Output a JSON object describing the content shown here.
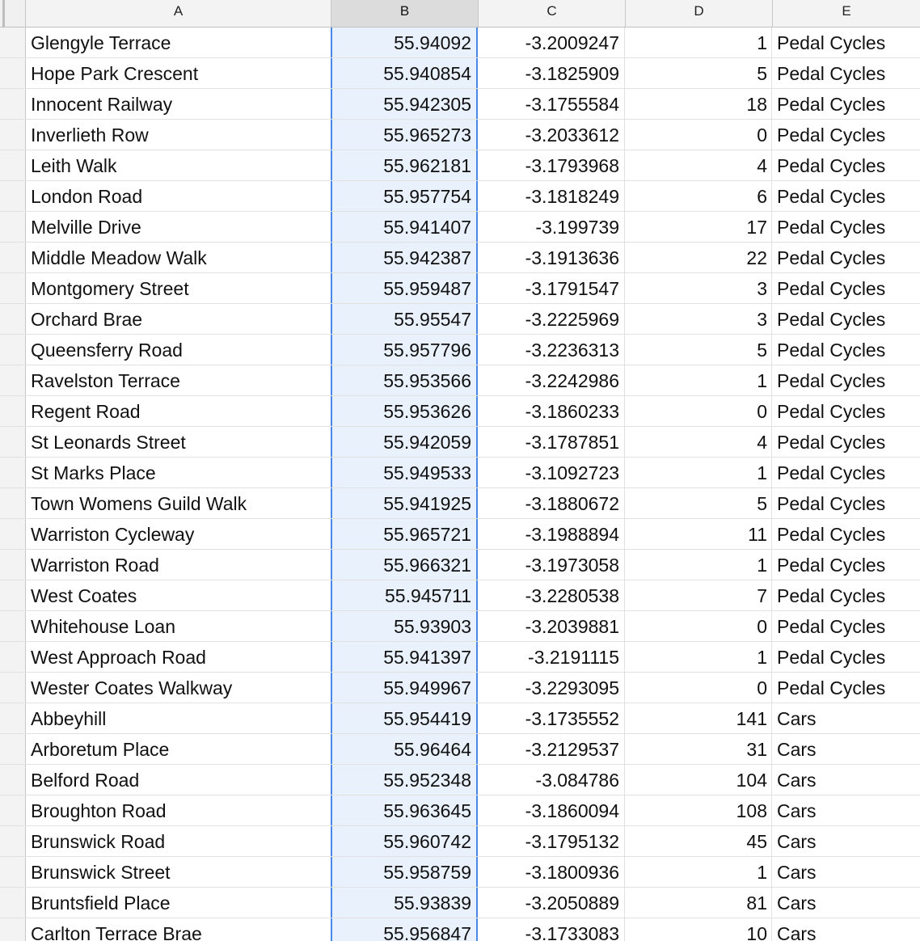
{
  "sheet": {
    "columns": [
      {
        "key": "A",
        "label": "A"
      },
      {
        "key": "B",
        "label": "B",
        "selected": true
      },
      {
        "key": "C",
        "label": "C"
      },
      {
        "key": "D",
        "label": "D"
      },
      {
        "key": "E",
        "label": "E"
      }
    ],
    "selection_color": "#4a86e8",
    "selection_fill": "#e9f1fd",
    "rows": [
      {
        "name": "Glengyle Terrace",
        "lat": "55.94092",
        "lon": "-3.2009247",
        "count": "1",
        "type": "Pedal Cycles"
      },
      {
        "name": "Hope Park Crescent",
        "lat": "55.940854",
        "lon": "-3.1825909",
        "count": "5",
        "type": "Pedal Cycles"
      },
      {
        "name": "Innocent Railway",
        "lat": "55.942305",
        "lon": "-3.1755584",
        "count": "18",
        "type": "Pedal Cycles"
      },
      {
        "name": "Inverlieth Row",
        "lat": "55.965273",
        "lon": "-3.2033612",
        "count": "0",
        "type": "Pedal Cycles"
      },
      {
        "name": "Leith Walk",
        "lat": "55.962181",
        "lon": "-3.1793968",
        "count": "4",
        "type": "Pedal Cycles"
      },
      {
        "name": "London Road",
        "lat": "55.957754",
        "lon": "-3.1818249",
        "count": "6",
        "type": "Pedal Cycles"
      },
      {
        "name": "Melville Drive",
        "lat": "55.941407",
        "lon": "-3.199739",
        "count": "17",
        "type": "Pedal Cycles"
      },
      {
        "name": "Middle Meadow Walk",
        "lat": "55.942387",
        "lon": "-3.1913636",
        "count": "22",
        "type": "Pedal Cycles"
      },
      {
        "name": "Montgomery Street",
        "lat": "55.959487",
        "lon": "-3.1791547",
        "count": "3",
        "type": "Pedal Cycles"
      },
      {
        "name": "Orchard Brae",
        "lat": "55.95547",
        "lon": "-3.2225969",
        "count": "3",
        "type": "Pedal Cycles"
      },
      {
        "name": "Queensferry Road",
        "lat": "55.957796",
        "lon": "-3.2236313",
        "count": "5",
        "type": "Pedal Cycles"
      },
      {
        "name": "Ravelston Terrace",
        "lat": "55.953566",
        "lon": "-3.2242986",
        "count": "1",
        "type": "Pedal Cycles"
      },
      {
        "name": "Regent Road",
        "lat": "55.953626",
        "lon": "-3.1860233",
        "count": "0",
        "type": "Pedal Cycles"
      },
      {
        "name": "St Leonards Street",
        "lat": "55.942059",
        "lon": "-3.1787851",
        "count": "4",
        "type": "Pedal Cycles"
      },
      {
        "name": "St Marks Place",
        "lat": "55.949533",
        "lon": "-3.1092723",
        "count": "1",
        "type": "Pedal Cycles"
      },
      {
        "name": "Town Womens Guild Walk",
        "lat": "55.941925",
        "lon": "-3.1880672",
        "count": "5",
        "type": "Pedal Cycles"
      },
      {
        "name": "Warriston Cycleway",
        "lat": "55.965721",
        "lon": "-3.1988894",
        "count": "11",
        "type": "Pedal Cycles"
      },
      {
        "name": "Warriston Road",
        "lat": "55.966321",
        "lon": "-3.1973058",
        "count": "1",
        "type": "Pedal Cycles"
      },
      {
        "name": "West Coates",
        "lat": "55.945711",
        "lon": "-3.2280538",
        "count": "7",
        "type": "Pedal Cycles"
      },
      {
        "name": "Whitehouse Loan",
        "lat": "55.93903",
        "lon": "-3.2039881",
        "count": "0",
        "type": "Pedal Cycles"
      },
      {
        "name": "West Approach Road",
        "lat": "55.941397",
        "lon": "-3.2191115",
        "count": "1",
        "type": "Pedal Cycles"
      },
      {
        "name": "Wester Coates Walkway",
        "lat": "55.949967",
        "lon": "-3.2293095",
        "count": "0",
        "type": "Pedal Cycles"
      },
      {
        "name": "Abbeyhill",
        "lat": "55.954419",
        "lon": "-3.1735552",
        "count": "141",
        "type": "Cars"
      },
      {
        "name": "Arboretum Place",
        "lat": "55.96464",
        "lon": "-3.2129537",
        "count": "31",
        "type": "Cars"
      },
      {
        "name": "Belford Road",
        "lat": "55.952348",
        "lon": "-3.084786",
        "count": "104",
        "type": "Cars"
      },
      {
        "name": "Broughton Road",
        "lat": "55.963645",
        "lon": "-3.1860094",
        "count": "108",
        "type": "Cars"
      },
      {
        "name": "Brunswick Road",
        "lat": "55.960742",
        "lon": "-3.1795132",
        "count": "45",
        "type": "Cars"
      },
      {
        "name": "Brunswick Street",
        "lat": "55.958759",
        "lon": "-3.1800936",
        "count": "1",
        "type": "Cars"
      },
      {
        "name": "Bruntsfield Place",
        "lat": "55.93839",
        "lon": "-3.2050889",
        "count": "81",
        "type": "Cars"
      },
      {
        "name": "Carlton Terrace Brae",
        "lat": "55.956847",
        "lon": "-3.1733083",
        "count": "10",
        "type": "Cars"
      }
    ]
  }
}
